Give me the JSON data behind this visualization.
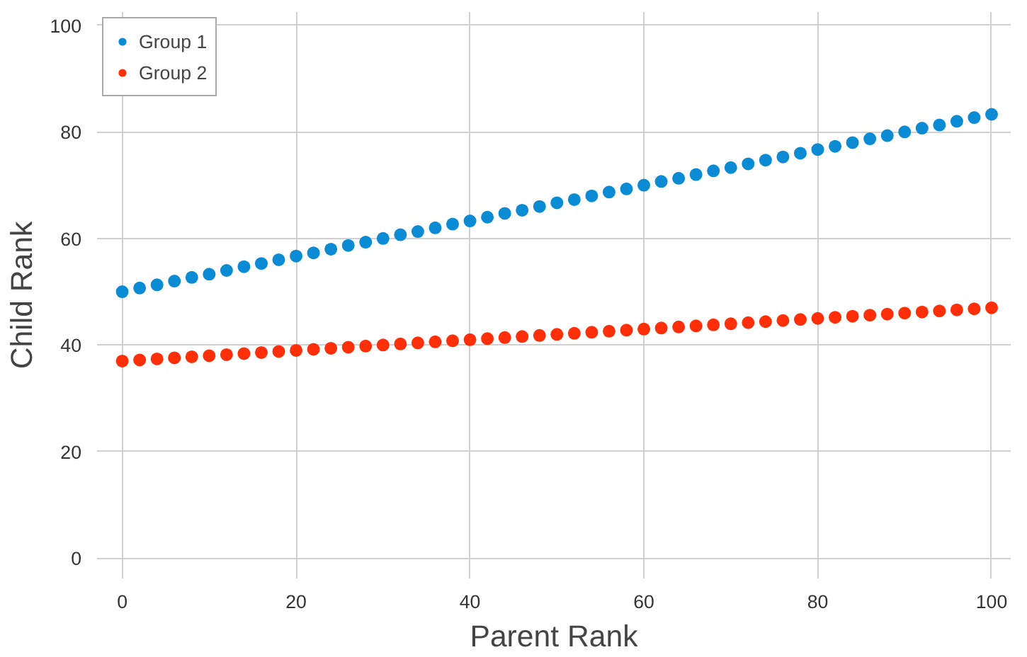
{
  "chart_data": {
    "type": "scatter",
    "xlabel": "Parent Rank",
    "ylabel": "Child Rank",
    "x": [
      0,
      2,
      4,
      6,
      8,
      10,
      12,
      14,
      16,
      18,
      20,
      22,
      24,
      26,
      28,
      30,
      32,
      34,
      36,
      38,
      40,
      42,
      44,
      46,
      48,
      50,
      52,
      54,
      56,
      58,
      60,
      62,
      64,
      66,
      68,
      70,
      72,
      74,
      76,
      78,
      80,
      82,
      84,
      86,
      88,
      90,
      92,
      94,
      96,
      98,
      100
    ],
    "series": [
      {
        "name": "Group 1",
        "color": "#0a8bd4",
        "values": [
          50,
          50.7,
          51.3,
          52,
          52.7,
          53.3,
          54,
          54.7,
          55.3,
          56,
          56.7,
          57.3,
          58,
          58.7,
          59.3,
          60,
          60.7,
          61.3,
          62,
          62.7,
          63.3,
          64,
          64.7,
          65.3,
          66,
          66.7,
          67.3,
          68,
          68.7,
          69.3,
          70,
          70.7,
          71.3,
          72,
          72.7,
          73.3,
          74,
          74.7,
          75.3,
          76,
          76.7,
          77.3,
          78,
          78.7,
          79.3,
          80,
          80.7,
          81.3,
          82,
          82.7,
          83.3
        ]
      },
      {
        "name": "Group 2",
        "color": "#ff2f0a",
        "values": [
          37,
          37.2,
          37.4,
          37.6,
          37.8,
          38,
          38.2,
          38.4,
          38.6,
          38.8,
          39,
          39.2,
          39.4,
          39.6,
          39.8,
          40,
          40.2,
          40.4,
          40.6,
          40.8,
          41,
          41.2,
          41.4,
          41.6,
          41.8,
          42,
          42.2,
          42.4,
          42.6,
          42.8,
          43,
          43.2,
          43.4,
          43.6,
          43.8,
          44,
          44.2,
          44.4,
          44.6,
          44.8,
          45,
          45.2,
          45.4,
          45.6,
          45.8,
          46,
          46.2,
          46.4,
          46.6,
          46.8,
          47
        ]
      }
    ],
    "xlim": [
      -2.9,
      102.2
    ],
    "ylim": [
      -3.8,
      102.5
    ],
    "xticks": [
      0,
      20,
      40,
      60,
      80,
      100
    ],
    "yticks": [
      0,
      20,
      40,
      60,
      80,
      100
    ],
    "grid": true,
    "legend": "top left",
    "marker": "circle"
  }
}
